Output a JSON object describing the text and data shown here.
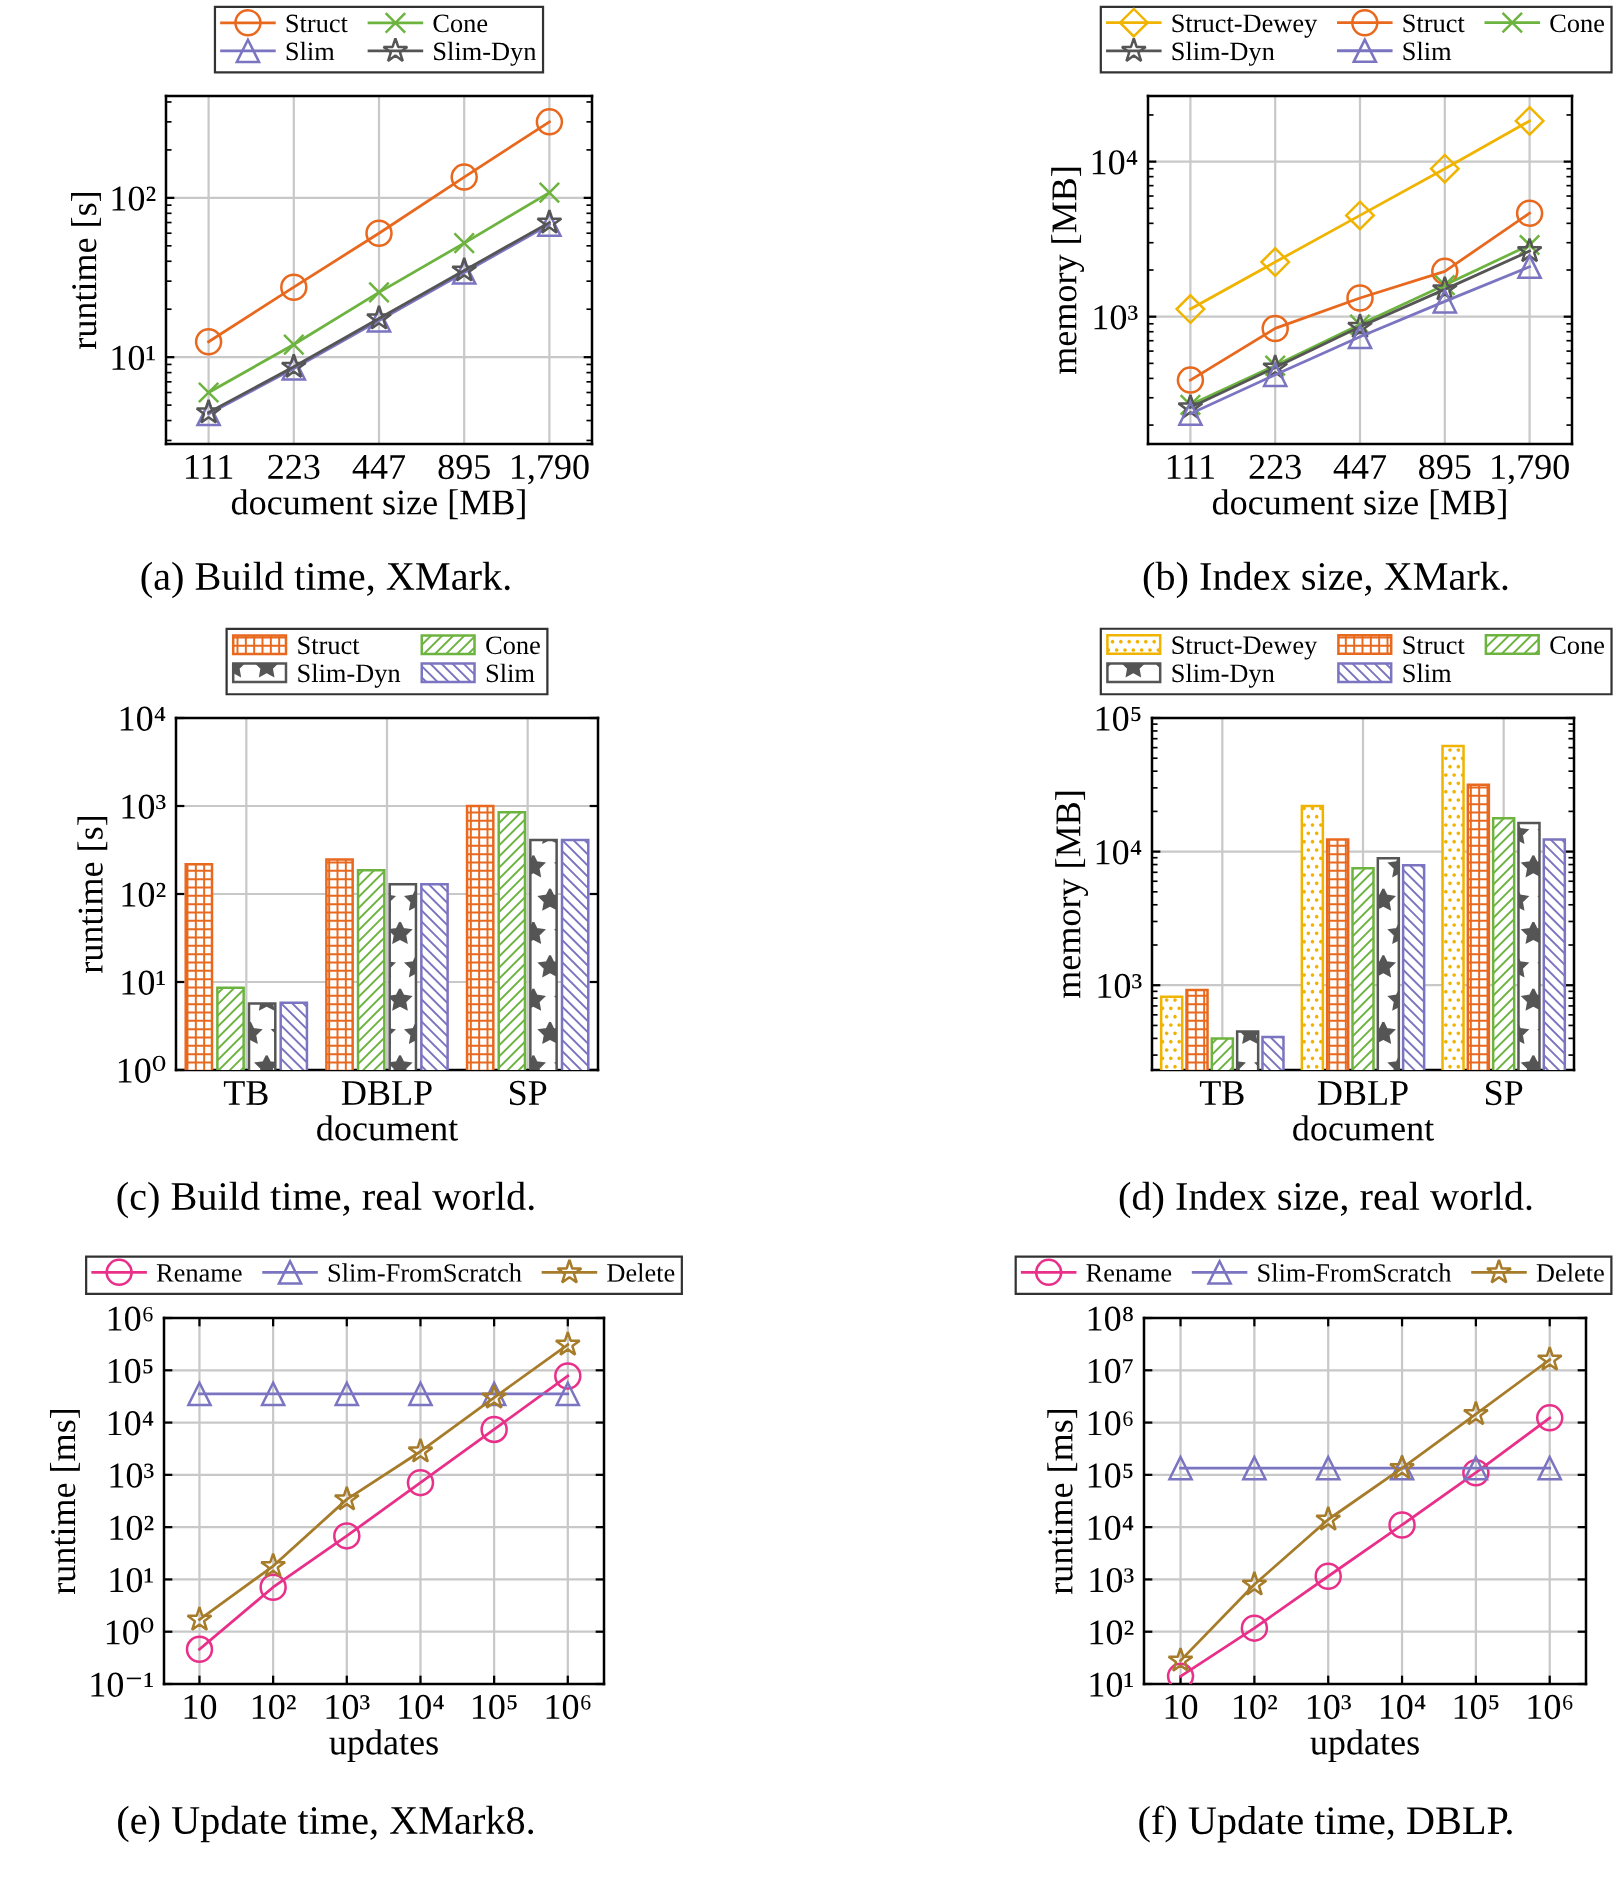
{
  "chart_data": [
    {
      "type": "line",
      "title": "(a) Build time, XMark.",
      "xlabel": "document size [MB]",
      "ylabel": "runtime [s]",
      "categories": [
        "111",
        "223",
        "447",
        "895",
        "1,790"
      ],
      "log": "y",
      "ylim": [
        2.85,
        436
      ],
      "yticks": [
        {
          "value": 10,
          "label": "10¹"
        },
        {
          "value": 100,
          "label": "10²"
        }
      ],
      "grid": true,
      "legend": "top",
      "series": [
        {
          "name": "Struct",
          "color": "#e8681e",
          "marker": "circle",
          "values": [
            12.5,
            27.5,
            60,
            135,
            300
          ]
        },
        {
          "name": "Cone",
          "color": "#6db33f",
          "marker": "cross",
          "values": [
            6,
            12,
            25.5,
            52,
            108
          ]
        },
        {
          "name": "Slim",
          "color": "#7b74c0",
          "marker": "triangle",
          "values": [
            4.4,
            8.5,
            17,
            34,
            68
          ]
        },
        {
          "name": "Slim-Dyn",
          "color": "#555555",
          "marker": "star",
          "values": [
            4.5,
            8.7,
            17.5,
            35,
            70
          ]
        }
      ]
    },
    {
      "type": "line",
      "title": "(b) Index size, XMark.",
      "xlabel": "document size [MB]",
      "ylabel": "memory [MB]",
      "categories": [
        "111",
        "223",
        "447",
        "895",
        "1,790"
      ],
      "log": "y",
      "ylim": [
        151,
        26500
      ],
      "yticks": [
        {
          "value": 1000,
          "label": "10³"
        },
        {
          "value": 10000,
          "label": "10⁴"
        }
      ],
      "grid": true,
      "legend": "top",
      "series": [
        {
          "name": "Struct-Dewey",
          "color": "#f0b400",
          "marker": "diamond",
          "values": [
            1120,
            2250,
            4500,
            9000,
            18300
          ]
        },
        {
          "name": "Struct",
          "color": "#e8681e",
          "marker": "circle",
          "values": [
            390,
            840,
            1320,
            1960,
            4650
          ]
        },
        {
          "name": "Cone",
          "color": "#6db33f",
          "marker": "cross",
          "values": [
            270,
            484,
            890,
            1600,
            2900
          ]
        },
        {
          "name": "Slim-Dyn",
          "color": "#555555",
          "marker": "star",
          "values": [
            260,
            470,
            860,
            1500,
            2650
          ]
        },
        {
          "name": "Slim",
          "color": "#7b74c0",
          "marker": "triangle",
          "values": [
            237,
            422,
            742,
            1255,
            2100
          ]
        }
      ]
    },
    {
      "type": "bar",
      "title": "(c) Build time, real world.",
      "xlabel": "document",
      "ylabel": "runtime [s]",
      "categories": [
        "TB",
        "DBLP",
        "SP"
      ],
      "log": "y",
      "ylim": [
        1,
        10000
      ],
      "yticks": [
        {
          "value": 1,
          "label": "10⁰"
        },
        {
          "value": 10,
          "label": "10¹"
        },
        {
          "value": 100,
          "label": "10²"
        },
        {
          "value": 1000,
          "label": "10³"
        },
        {
          "value": 10000,
          "label": "10⁴"
        }
      ],
      "grid": true,
      "legend": "top",
      "series": [
        {
          "name": "Struct",
          "color": "#e8681e",
          "values": [
            218,
            246,
            1000
          ]
        },
        {
          "name": "Cone",
          "color": "#6db33f",
          "values": [
            8.6,
            186,
            850
          ]
        },
        {
          "name": "Slim-Dyn",
          "color": "#555555",
          "values": [
            5.7,
            129,
            410
          ]
        },
        {
          "name": "Slim",
          "color": "#7b74c0",
          "values": [
            5.8,
            129,
            410
          ]
        }
      ]
    },
    {
      "type": "bar",
      "title": "(d) Index size, real world.",
      "xlabel": "document",
      "ylabel": "memory [MB]",
      "categories": [
        "TB",
        "DBLP",
        "SP"
      ],
      "log": "y",
      "ylim": [
        232,
        100000
      ],
      "yticks": [
        {
          "value": 1000,
          "label": "10³"
        },
        {
          "value": 10000,
          "label": "10⁴"
        },
        {
          "value": 100000,
          "label": "10⁵"
        }
      ],
      "grid": true,
      "legend": "top",
      "series": [
        {
          "name": "Struct-Dewey",
          "color": "#f0b400",
          "values": [
            820,
            21900,
            61700
          ]
        },
        {
          "name": "Struct",
          "color": "#e8681e",
          "values": [
            920,
            12300,
            31600
          ]
        },
        {
          "name": "Cone",
          "color": "#6db33f",
          "values": [
            400,
            7500,
            17800
          ]
        },
        {
          "name": "Slim-Dyn",
          "color": "#555555",
          "values": [
            450,
            8900,
            16400
          ]
        },
        {
          "name": "Slim",
          "color": "#7b74c0",
          "values": [
            410,
            7900,
            12300
          ]
        }
      ]
    },
    {
      "type": "line",
      "title": "(e) Update time, XMark8.",
      "xlabel": "updates",
      "ylabel": "runtime [ms]",
      "x": [
        10,
        100,
        1000,
        10000,
        100000,
        1000000
      ],
      "log": "xy",
      "xlim": [
        3.3,
        3100000
      ],
      "xticks": [
        10,
        {
          "value": 100,
          "label": "10²"
        },
        {
          "value": 1000,
          "label": "10³"
        },
        {
          "value": 10000,
          "label": "10⁴"
        },
        {
          "value": 100000,
          "label": "10⁵"
        },
        {
          "value": 1000000,
          "label": "10⁶"
        }
      ],
      "ylim": [
        0.1,
        1000000
      ],
      "yticks": [
        {
          "value": 0.1,
          "label": "10⁻¹"
        },
        {
          "value": 1,
          "label": "10⁰"
        },
        {
          "value": 10,
          "label": "10¹"
        },
        {
          "value": 100,
          "label": "10²"
        },
        {
          "value": 1000,
          "label": "10³"
        },
        {
          "value": 10000,
          "label": "10⁴"
        },
        {
          "value": 100000,
          "label": "10⁵"
        },
        {
          "value": 1000000,
          "label": "10⁶"
        }
      ],
      "grid": true,
      "legend": "top",
      "series": [
        {
          "name": "Rename",
          "color": "#e8308a",
          "marker": "circle",
          "values": [
            0.46,
            7.1,
            68,
            710,
            7400,
            78000
          ]
        },
        {
          "name": "Slim-FromScratch",
          "type": "line",
          "color": "#7b74c0",
          "marker": "triangle",
          "values": [
            35500,
            35500,
            35500,
            35500,
            35500,
            35500
          ]
        },
        {
          "name": "Delete",
          "color": "#a67c2a",
          "marker": "star",
          "values": [
            1.7,
            18,
            340,
            2800,
            30000,
            310000
          ]
        }
      ]
    },
    {
      "type": "line",
      "title": "(f) Update time, DBLP.",
      "xlabel": "updates",
      "ylabel": "runtime [ms]",
      "x": [
        10,
        100,
        1000,
        10000,
        100000,
        1000000
      ],
      "log": "xy",
      "xlim": [
        3.2,
        3100000
      ],
      "xticks": [
        10,
        {
          "value": 100,
          "label": "10²"
        },
        {
          "value": 1000,
          "label": "10³"
        },
        {
          "value": 10000,
          "label": "10⁴"
        },
        {
          "value": 100000,
          "label": "10⁵"
        },
        {
          "value": 1000000,
          "label": "10⁶"
        }
      ],
      "ylim": [
        10,
        100000000
      ],
      "yticks": [
        {
          "value": 10,
          "label": "10¹"
        },
        {
          "value": 100,
          "label": "10²"
        },
        {
          "value": 1000,
          "label": "10³"
        },
        {
          "value": 10000,
          "label": "10⁴"
        },
        {
          "value": 100000,
          "label": "10⁵"
        },
        {
          "value": 1000000,
          "label": "10⁶"
        },
        {
          "value": 10000000,
          "label": "10⁷"
        },
        {
          "value": 100000000,
          "label": "10⁸"
        }
      ],
      "grid": true,
      "legend": "top",
      "series": [
        {
          "name": "Rename",
          "color": "#e8308a",
          "marker": "circle",
          "values": [
            14,
            117,
            1150,
            11000,
            110000,
            1230000
          ]
        },
        {
          "name": "Slim-FromScratch",
          "type": "line",
          "color": "#7b74c0",
          "marker": "triangle",
          "values": [
            135000,
            135000,
            135000,
            135000,
            135000,
            135000
          ]
        },
        {
          "name": "Delete",
          "color": "#a67c2a",
          "marker": "star",
          "values": [
            28,
            800,
            14000,
            135000,
            1450000,
            16000000
          ]
        }
      ]
    }
  ]
}
